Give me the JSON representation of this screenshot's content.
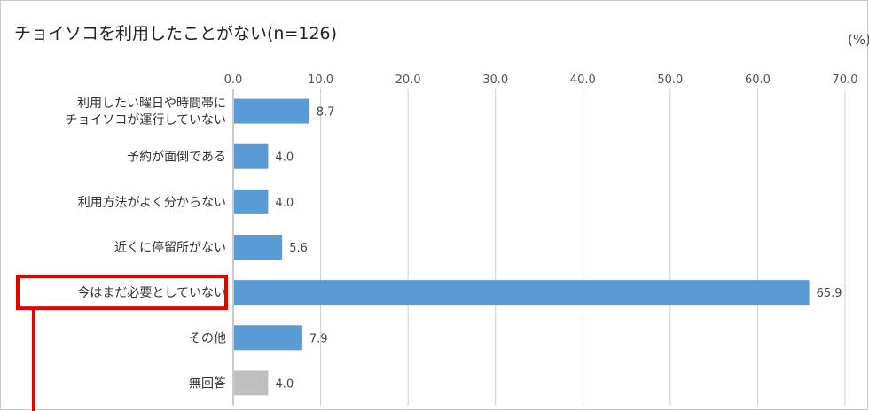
{
  "chart_data": {
    "type": "bar",
    "orientation": "horizontal",
    "title": "チョイソコを利用したことがない(n=126)",
    "unit_label": "(%)",
    "xlim": [
      0,
      70
    ],
    "ticks": [
      "0.0",
      "10.0",
      "20.0",
      "30.0",
      "40.0",
      "50.0",
      "60.0",
      "70.0"
    ],
    "grid": true,
    "categories": [
      [
        "利用したい曜日や時間帯に",
        "チョイソコが運行していない"
      ],
      [
        "予約が面倒である"
      ],
      [
        "利用方法がよく分からない"
      ],
      [
        "近くに停留所がない"
      ],
      [
        "今はまだ必要としていない"
      ],
      [
        "その他"
      ],
      [
        "無回答"
      ]
    ],
    "values": [
      8.7,
      4.0,
      4.0,
      5.6,
      65.9,
      7.9,
      4.0
    ],
    "value_labels": [
      "8.7",
      "4.0",
      "4.0",
      "5.6",
      "65.9",
      "7.9",
      "4.0"
    ],
    "bar_colors": [
      "#5b9bd5",
      "#5b9bd5",
      "#5b9bd5",
      "#5b9bd5",
      "#5b9bd5",
      "#5b9bd5",
      "#bfbfbf"
    ],
    "highlight_index": 4,
    "highlight_color": "#e60000"
  }
}
